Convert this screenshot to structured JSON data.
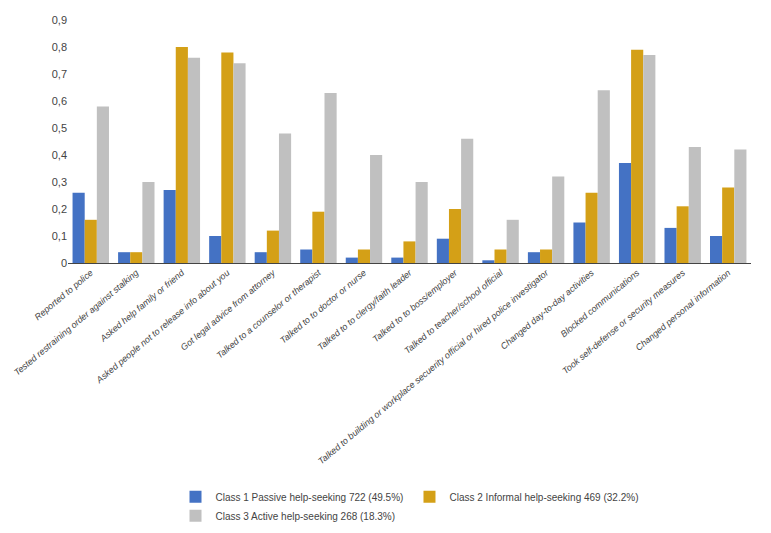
{
  "chart_data": {
    "type": "bar",
    "categories": [
      "Reported to police",
      "Tested restraining order against stalking",
      "Asked help family or friend",
      "Asked people not to release info about you",
      "Got legal advice from attorney",
      "Talked to a counselor or therapist",
      "Talked to to doctor or nurse",
      "Talked to to clergy/faith leader",
      "Talked to to boss/employer",
      "Talked to teacher/school official",
      "Talked to building or workplace secuerity official or hired police investigator",
      "Changed day-to-day activities",
      "Blocked communications",
      "Took self-defense or security measures",
      "Changed personal information"
    ],
    "series": [
      {
        "name": "Class 1 Passive help-seeking 722 (49.5%)",
        "color": "#4472C4",
        "values": [
          0.26,
          0.04,
          0.27,
          0.1,
          0.04,
          0.05,
          0.02,
          0.02,
          0.09,
          0.01,
          0.04,
          0.15,
          0.37,
          0.13,
          0.1
        ]
      },
      {
        "name": "Class 2 Informal help-seeking 469 (32.2%)",
        "color": "#D4A017",
        "values": [
          0.16,
          0.04,
          0.8,
          0.78,
          0.12,
          0.19,
          0.05,
          0.08,
          0.2,
          0.05,
          0.05,
          0.26,
          0.79,
          0.21,
          0.28
        ]
      },
      {
        "name": "Class 3 Active help-seeking 268 (18.3%)",
        "color": "#C0C0C0",
        "values": [
          0.58,
          0.3,
          0.76,
          0.74,
          0.48,
          0.63,
          0.4,
          0.3,
          0.46,
          0.16,
          0.32,
          0.64,
          0.77,
          0.43,
          0.42
        ]
      }
    ],
    "ylim": [
      0,
      0.9
    ],
    "yticks": [
      0,
      {
        "value": 0.1,
        "label": "0,1"
      },
      {
        "value": 0.2,
        "label": "0,2"
      },
      {
        "value": 0.3,
        "label": "0,3"
      },
      {
        "value": 0.4,
        "label": "0,4"
      },
      {
        "value": 0.5,
        "label": "0,5"
      },
      {
        "value": 0.6,
        "label": "0,6"
      },
      {
        "value": 0.7,
        "label": "0,7"
      },
      {
        "value": 0.8,
        "label": "0,8"
      },
      {
        "value": 0.9,
        "label": "0,9"
      }
    ],
    "grid": false,
    "legend": "bottom"
  }
}
